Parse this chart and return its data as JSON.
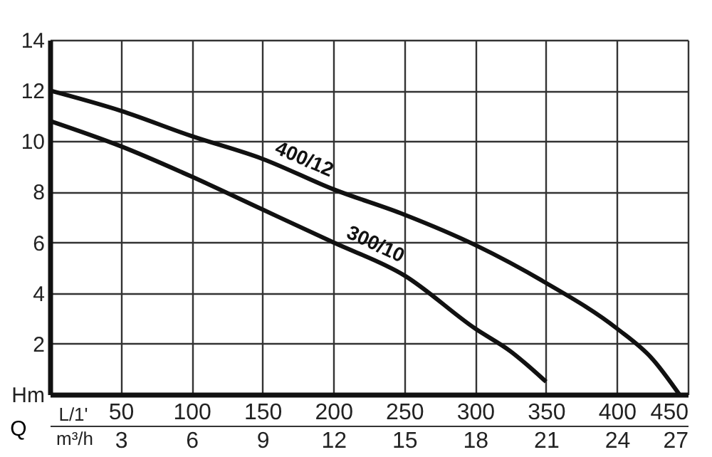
{
  "chart_data": {
    "type": "line",
    "xlabel": "L/1'",
    "x2label": "m³/h",
    "annotations": [
      "Q"
    ],
    "xlim": [
      0,
      450
    ],
    "xticks": [
      50,
      100,
      150,
      200,
      250,
      300,
      350,
      400,
      450
    ],
    "x2lim": [
      0,
      27
    ],
    "x2ticks": [
      3,
      6,
      9,
      12,
      15,
      18,
      21,
      24,
      27
    ],
    "ylim": [
      0,
      14
    ],
    "yticks": [
      {
        "value": 0,
        "label": "Hm"
      },
      2,
      4,
      6,
      8,
      10,
      12,
      14
    ],
    "grid": true,
    "line_style": "solid",
    "marker": "none",
    "series": [
      {
        "name": "400/12",
        "color": "#111111",
        "x": [
          0,
          50,
          100,
          150,
          200,
          250,
          300,
          350,
          400,
          425,
          444
        ],
        "values": [
          12,
          11.2,
          10.2,
          9.3,
          8.1,
          7.1,
          5.9,
          4.4,
          2.6,
          1.4,
          0
        ]
      },
      {
        "name": "300/10",
        "color": "#111111",
        "x": [
          0,
          50,
          100,
          150,
          200,
          250,
          300,
          325,
          350
        ],
        "values": [
          10.8,
          9.8,
          8.6,
          7.3,
          6.0,
          4.7,
          2.6,
          1.7,
          0.5
        ]
      }
    ]
  }
}
